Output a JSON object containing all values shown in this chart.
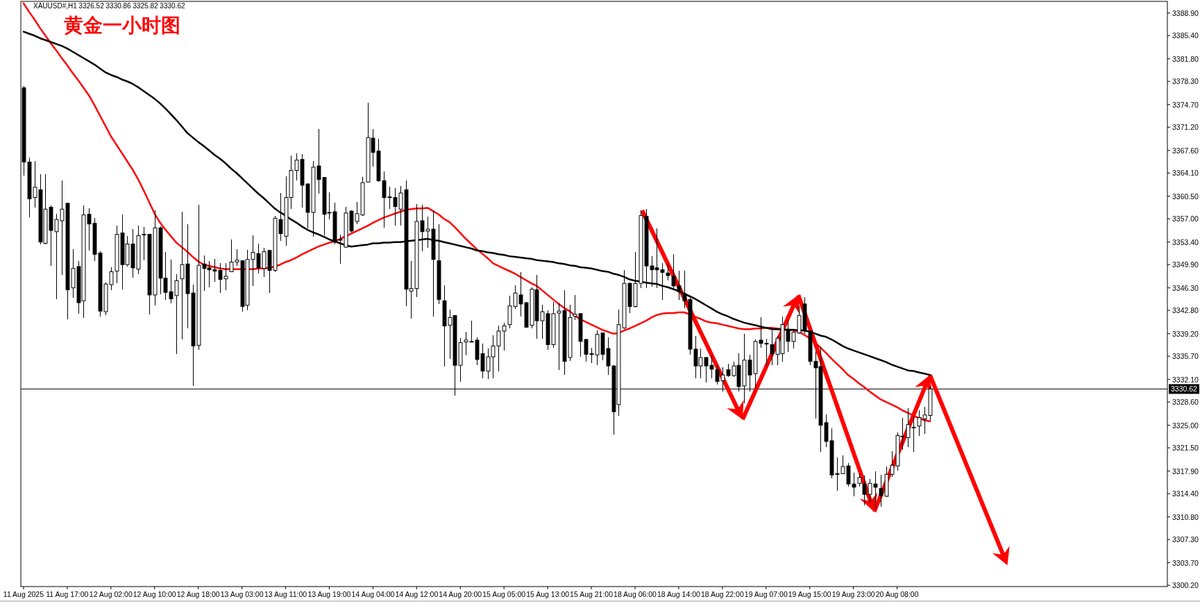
{
  "chart_data": {
    "type": "candlestick",
    "title": "黄金一小时图",
    "annotations": [
      "XAUUSD#,H1  3326.52 3330.86 3325.82 3330.62"
    ],
    "categories": [
      "11 Aug 2025",
      null,
      null,
      null,
      null,
      null,
      null,
      null,
      "11 Aug 17:00",
      null,
      null,
      null,
      null,
      null,
      null,
      null,
      "12 Aug 02:00",
      null,
      null,
      null,
      null,
      null,
      null,
      null,
      "12 Aug 10:00",
      null,
      null,
      null,
      null,
      null,
      null,
      null,
      "12 Aug 18:00",
      null,
      null,
      null,
      null,
      null,
      null,
      null,
      "13 Aug 03:00",
      null,
      null,
      null,
      null,
      null,
      null,
      null,
      "13 Aug 11:00",
      null,
      null,
      null,
      null,
      null,
      null,
      null,
      "13 Aug 19:00",
      null,
      null,
      null,
      null,
      null,
      null,
      null,
      "14 Aug 04:00",
      null,
      null,
      null,
      null,
      null,
      null,
      null,
      "14 Aug 12:00",
      null,
      null,
      null,
      null,
      null,
      null,
      null,
      "14 Aug 20:00",
      null,
      null,
      null,
      null,
      null,
      null,
      null,
      "15 Aug 05:00",
      null,
      null,
      null,
      null,
      null,
      null,
      null,
      "15 Aug 13:00",
      null,
      null,
      null,
      null,
      null,
      null,
      null,
      "15 Aug 21:00",
      null,
      null,
      null,
      null,
      null,
      null,
      null,
      "18 Aug 06:00",
      null,
      null,
      null,
      null,
      null,
      null,
      null,
      "18 Aug 14:00",
      null,
      null,
      null,
      null,
      null,
      null,
      null,
      "18 Aug 22:00",
      null,
      null,
      null,
      null,
      null,
      null,
      null,
      "19 Aug 07:00",
      null,
      null,
      null,
      null,
      null,
      null,
      null,
      "19 Aug 15:00",
      null,
      null,
      null,
      null,
      null,
      null,
      null,
      "19 Aug 23:00",
      null,
      null,
      null,
      null,
      null,
      null,
      null,
      "20 Aug 08:00",
      null,
      null,
      null,
      null,
      null,
      null
    ],
    "ohlc": [
      [
        3377.3,
        3377.5,
        3363.8,
        3365.8
      ],
      [
        3365.8,
        3366.4,
        3357.3,
        3360.1
      ],
      [
        3360.3,
        3365.8,
        3358.8,
        3361.9
      ],
      [
        3361.5,
        3363.8,
        3353.1,
        3353.4
      ],
      [
        3353.2,
        3363.8,
        3353.1,
        3358.5
      ],
      [
        3358.8,
        3359.0,
        3349.8,
        3355.2
      ],
      [
        3355.0,
        3357.7,
        3344.6,
        3356.9
      ],
      [
        3356.7,
        3362.8,
        3348.4,
        3358.5
      ],
      [
        3359.4,
        3359.4,
        3341.5,
        3346.0
      ],
      [
        3346.3,
        3352.2,
        3344.9,
        3349.3
      ],
      [
        3349.6,
        3350.3,
        3342.4,
        3344.0
      ],
      [
        3344.3,
        3359.0,
        3341.7,
        3357.6
      ],
      [
        3357.7,
        3358.5,
        3352.2,
        3356.2
      ],
      [
        3356.3,
        3357.0,
        3350.6,
        3351.5
      ],
      [
        3351.7,
        3351.9,
        3342.0,
        3342.7
      ],
      [
        3342.6,
        3347.0,
        3342.2,
        3346.9
      ],
      [
        3346.8,
        3349.4,
        3346.1,
        3348.8
      ],
      [
        3348.9,
        3355.8,
        3347.1,
        3354.6
      ],
      [
        3354.8,
        3357.6,
        3346.2,
        3349.9
      ],
      [
        3349.9,
        3354.2,
        3349.7,
        3353.1
      ],
      [
        3353.1,
        3355.3,
        3348.0,
        3349.4
      ],
      [
        3349.2,
        3355.8,
        3348.5,
        3354.4
      ],
      [
        3354.6,
        3355.6,
        3350.7,
        3354.5
      ],
      [
        3354.6,
        3354.6,
        3342.3,
        3345.2
      ],
      [
        3345.2,
        3358.2,
        3343.7,
        3355.6
      ],
      [
        3355.6,
        3355.7,
        3345.4,
        3347.8
      ],
      [
        3347.8,
        3351.8,
        3344.5,
        3345.6
      ],
      [
        3345.7,
        3350.6,
        3344.0,
        3344.6
      ],
      [
        3345.1,
        3348.3,
        3336.2,
        3347.4
      ],
      [
        3347.7,
        3358.0,
        3338.4,
        3349.9
      ],
      [
        3350.0,
        3356.1,
        3340.1,
        3345.4
      ],
      [
        3345.5,
        3346.7,
        3331.2,
        3337.3
      ],
      [
        3337.4,
        3359.1,
        3336.8,
        3349.8
      ],
      [
        3350.0,
        3351.2,
        3345.9,
        3349.3
      ],
      [
        3349.4,
        3350.4,
        3346.5,
        3349.1
      ],
      [
        3349.1,
        3350.7,
        3347.3,
        3348.9
      ],
      [
        3349.0,
        3350.0,
        3345.6,
        3347.6
      ],
      [
        3347.7,
        3350.0,
        3346.1,
        3348.1
      ],
      [
        3348.8,
        3353.7,
        3348.8,
        3350.3
      ],
      [
        3350.3,
        3352.2,
        3349.8,
        3350.6
      ],
      [
        3350.5,
        3350.5,
        3342.7,
        3343.4
      ],
      [
        3343.6,
        3352.1,
        3342.9,
        3350.7
      ],
      [
        3350.7,
        3354.3,
        3346.7,
        3351.8
      ],
      [
        3351.6,
        3353.0,
        3348.6,
        3349.4
      ],
      [
        3349.3,
        3352.4,
        3348.1,
        3351.9
      ],
      [
        3352.1,
        3352.1,
        3345.6,
        3349.0
      ],
      [
        3349.0,
        3357.4,
        3348.8,
        3357.1
      ],
      [
        3356.9,
        3360.9,
        3353.7,
        3354.7
      ],
      [
        3354.3,
        3363.5,
        3352.9,
        3360.3
      ],
      [
        3360.3,
        3366.7,
        3358.6,
        3364.5
      ],
      [
        3364.5,
        3367.0,
        3363.0,
        3366.1
      ],
      [
        3366.2,
        3366.9,
        3358.8,
        3362.2
      ],
      [
        3362.4,
        3362.4,
        3355.6,
        3358.0
      ],
      [
        3358.0,
        3365.9,
        3354.3,
        3365.0
      ],
      [
        3365.2,
        3370.8,
        3361.0,
        3363.1
      ],
      [
        3363.4,
        3363.4,
        3354.5,
        3357.7
      ],
      [
        3358.0,
        3361.0,
        3357.0,
        3358.0
      ],
      [
        3358.1,
        3359.4,
        3353.2,
        3353.4
      ],
      [
        3353.8,
        3354.4,
        3350.1,
        3353.8
      ],
      [
        3352.6,
        3358.7,
        3352.6,
        3357.9
      ],
      [
        3358.2,
        3358.2,
        3355.0,
        3355.1
      ],
      [
        3356.6,
        3359.5,
        3356.3,
        3357.8
      ],
      [
        3357.6,
        3363.4,
        3357.6,
        3362.6
      ],
      [
        3362.7,
        3374.9,
        3362.7,
        3369.6
      ],
      [
        3369.5,
        3370.8,
        3365.2,
        3367.3
      ],
      [
        3367.5,
        3369.3,
        3362.8,
        3362.9
      ],
      [
        3362.9,
        3364.2,
        3355.7,
        3360.3
      ],
      [
        3360.4,
        3361.9,
        3358.6,
        3360.4
      ],
      [
        3360.3,
        3361.7,
        3356.1,
        3358.9
      ],
      [
        3358.5,
        3362.0,
        3356.1,
        3361.0
      ],
      [
        3361.5,
        3362.8,
        3343.6,
        3346.1
      ],
      [
        3345.8,
        3350.4,
        3341.6,
        3346.2
      ],
      [
        3346.2,
        3359.2,
        3345.0,
        3356.6
      ],
      [
        3356.7,
        3359.1,
        3352.1,
        3355.0
      ],
      [
        3355.1,
        3357.2,
        3352.6,
        3355.4
      ],
      [
        3355.4,
        3358.2,
        3342.0,
        3350.7
      ],
      [
        3350.5,
        3356.1,
        3343.9,
        3344.5
      ],
      [
        3344.3,
        3346.6,
        3334.2,
        3340.4
      ],
      [
        3340.5,
        3342.8,
        3335.4,
        3341.7
      ],
      [
        3342.0,
        3342.0,
        3329.7,
        3334.3
      ],
      [
        3334.3,
        3338.4,
        3331.9,
        3337.8
      ],
      [
        3337.9,
        3339.4,
        3335.9,
        3338.2
      ],
      [
        3338.0,
        3341.1,
        3338.0,
        3338.0
      ],
      [
        3338.2,
        3338.5,
        3334.4,
        3335.2
      ],
      [
        3336.1,
        3337.5,
        3332.4,
        3333.4
      ],
      [
        3333.4,
        3336.8,
        3332.3,
        3335.6
      ],
      [
        3335.6,
        3338.8,
        3332.4,
        3337.3
      ],
      [
        3337.3,
        3340.3,
        3333.5,
        3339.6
      ],
      [
        3339.6,
        3340.8,
        3336.7,
        3340.4
      ],
      [
        3340.6,
        3345.0,
        3340.1,
        3343.5
      ],
      [
        3343.4,
        3346.6,
        3343.1,
        3345.5
      ],
      [
        3345.2,
        3348.6,
        3342.0,
        3343.8
      ],
      [
        3344.0,
        3344.0,
        3340.2,
        3340.2
      ],
      [
        3340.5,
        3346.3,
        3340.1,
        3346.1
      ],
      [
        3346.0,
        3348.2,
        3338.5,
        3341.2
      ],
      [
        3341.2,
        3343.6,
        3338.5,
        3342.6
      ],
      [
        3342.3,
        3342.7,
        3336.8,
        3337.5
      ],
      [
        3337.5,
        3344.0,
        3337.1,
        3342.3
      ],
      [
        3342.4,
        3343.9,
        3333.7,
        3342.7
      ],
      [
        3342.8,
        3345.8,
        3332.9,
        3334.9
      ],
      [
        3335.5,
        3343.6,
        3335.1,
        3341.7
      ],
      [
        3341.9,
        3345.1,
        3341.4,
        3342.2
      ],
      [
        3342.3,
        3342.3,
        3335.7,
        3338.0
      ],
      [
        3338.3,
        3338.3,
        3335.0,
        3336.0
      ],
      [
        3336.1,
        3336.9,
        3334.7,
        3336.1
      ],
      [
        3335.9,
        3339.6,
        3334.4,
        3339.1
      ],
      [
        3339.3,
        3339.3,
        3335.2,
        3336.0
      ],
      [
        3336.9,
        3338.5,
        3332.9,
        3334.2
      ],
      [
        3334.2,
        3334.2,
        3323.7,
        3327.1
      ],
      [
        3328.2,
        3342.8,
        3326.6,
        3340.6
      ],
      [
        3340.1,
        3349.0,
        3340.0,
        3347.0
      ],
      [
        3347.0,
        3347.0,
        3342.5,
        3343.4
      ],
      [
        3343.4,
        3351.7,
        3343.4,
        3347.0
      ],
      [
        3347.0,
        3358.2,
        3346.4,
        3357.5
      ],
      [
        3357.4,
        3358.4,
        3346.4,
        3349.7
      ],
      [
        3349.7,
        3351.1,
        3346.6,
        3349.1
      ],
      [
        3349.4,
        3355.4,
        3346.4,
        3349.1
      ],
      [
        3349.1,
        3350.0,
        3344.5,
        3348.7
      ],
      [
        3348.6,
        3349.9,
        3347.6,
        3348.2
      ],
      [
        3348.1,
        3351.4,
        3346.4,
        3346.6
      ],
      [
        3346.6,
        3348.8,
        3344.5,
        3345.7
      ],
      [
        3345.4,
        3348.9,
        3343.2,
        3344.3
      ],
      [
        3344.5,
        3344.7,
        3336.0,
        3336.8
      ],
      [
        3336.8,
        3338.7,
        3332.4,
        3334.2
      ],
      [
        3334.2,
        3336.8,
        3332.4,
        3335.5
      ],
      [
        3335.5,
        3335.5,
        3331.7,
        3334.2
      ],
      [
        3334.3,
        3335.7,
        3332.4,
        3333.7
      ],
      [
        3333.6,
        3334.2,
        3331.4,
        3331.8
      ],
      [
        3331.9,
        3333.9,
        3330.3,
        3332.8
      ],
      [
        3333.6,
        3334.4,
        3332.6,
        3332.7
      ],
      [
        3332.7,
        3334.7,
        3332.6,
        3334.2
      ],
      [
        3334.3,
        3336.0,
        3330.3,
        3331.0
      ],
      [
        3331.1,
        3339.1,
        3328.5,
        3335.1
      ],
      [
        3335.1,
        3335.8,
        3330.3,
        3332.8
      ],
      [
        3333.0,
        3338.2,
        3330.8,
        3338.0
      ],
      [
        3338.2,
        3341.6,
        3337.1,
        3337.7
      ],
      [
        3337.7,
        3338.3,
        3334.2,
        3337.7
      ],
      [
        3337.5,
        3339.6,
        3334.4,
        3336.1
      ],
      [
        3336.0,
        3338.7,
        3334.4,
        3338.5
      ],
      [
        3336.1,
        3341.7,
        3335.0,
        3340.6
      ],
      [
        3339.8,
        3341.1,
        3336.5,
        3338.0
      ],
      [
        3338.0,
        3339.8,
        3337.0,
        3339.4
      ],
      [
        3339.3,
        3343.4,
        3339.3,
        3342.0
      ],
      [
        3343.8,
        3344.8,
        3339.3,
        3339.6
      ],
      [
        3339.6,
        3339.6,
        3334.4,
        3334.9
      ],
      [
        3334.9,
        3336.4,
        3326.1,
        3333.9
      ],
      [
        3334.1,
        3337.1,
        3321.0,
        3325.0
      ],
      [
        3325.4,
        3326.6,
        3321.7,
        3322.5
      ],
      [
        3322.6,
        3324.4,
        3316.9,
        3317.3
      ],
      [
        3317.5,
        3319.9,
        3315.0,
        3317.5
      ],
      [
        3317.5,
        3320.2,
        3317.5,
        3318.6
      ],
      [
        3318.7,
        3319.0,
        3315.6,
        3315.9
      ],
      [
        3315.9,
        3317.5,
        3314.1,
        3315.4
      ],
      [
        3316.0,
        3317.4,
        3315.6,
        3316.9
      ],
      [
        3315.9,
        3317.1,
        3312.7,
        3314.3
      ],
      [
        3314.3,
        3316.6,
        3313.1,
        3316.0
      ],
      [
        3315.9,
        3317.8,
        3312.2,
        3315.4
      ],
      [
        3315.2,
        3317.2,
        3312.5,
        3314.1
      ],
      [
        3314.0,
        3318.5,
        3314.0,
        3317.4
      ],
      [
        3317.4,
        3320.9,
        3317.1,
        3318.8
      ],
      [
        3318.7,
        3323.8,
        3318.1,
        3323.4
      ],
      [
        3323.3,
        3326.0,
        3321.3,
        3323.3
      ],
      [
        3323.1,
        3327.5,
        3321.7,
        3325.1
      ],
      [
        3324.7,
        3326.3,
        3321.0,
        3324.7
      ],
      [
        3324.9,
        3327.2,
        3323.5,
        3326.2
      ],
      [
        3326.0,
        3327.8,
        3323.8,
        3326.6
      ],
      [
        3326.52,
        3330.86,
        3325.82,
        3330.62
      ]
    ],
    "series": [
      {
        "type": "line",
        "color": "#ff0000",
        "values": [
          3390.4,
          3389.1,
          3387.9,
          3386.6,
          3385.4,
          3384.2,
          3383.1,
          3381.9,
          3380.8,
          3379.6,
          3378.5,
          3377.3,
          3376.1,
          3374.6,
          3373.0,
          3371.4,
          3369.8,
          3368.5,
          3367.2,
          3365.9,
          3364.6,
          3363.1,
          3361.4,
          3359.6,
          3357.8,
          3356.4,
          3355.3,
          3354.3,
          3353.3,
          3352.6,
          3351.9,
          3351.1,
          3350.4,
          3349.9,
          3349.7,
          3349.5,
          3349.3,
          3349.2,
          3349.2,
          3349.2,
          3349.2,
          3349.2,
          3349.2,
          3349.3,
          3349.3,
          3349.4,
          3349.6,
          3349.9,
          3350.3,
          3350.6,
          3351.0,
          3351.5,
          3351.9,
          3352.3,
          3352.7,
          3353.0,
          3353.3,
          3353.5,
          3353.9,
          3354.3,
          3354.7,
          3355.1,
          3355.5,
          3355.9,
          3356.4,
          3356.8,
          3357.2,
          3357.5,
          3357.8,
          3358.1,
          3358.4,
          3358.5,
          3358.6,
          3358.6,
          3358.7,
          3358.2,
          3357.7,
          3357.0,
          3356.5,
          3355.7,
          3354.8,
          3353.9,
          3353.1,
          3352.3,
          3351.6,
          3350.9,
          3350.1,
          3349.7,
          3349.3,
          3348.9,
          3348.5,
          3348.0,
          3347.5,
          3347.0,
          3346.6,
          3345.9,
          3345.2,
          3344.5,
          3343.8,
          3343.2,
          3342.7,
          3342.0,
          3341.4,
          3341.0,
          3340.6,
          3340.2,
          3339.8,
          3339.5,
          3339.2,
          3339.3,
          3339.7,
          3340.0,
          3340.4,
          3340.8,
          3341.2,
          3341.7,
          3342.1,
          3342.3,
          3342.4,
          3342.4,
          3342.5,
          3342.5,
          3342.2,
          3341.8,
          3341.5,
          3341.1,
          3340.9,
          3340.8,
          3340.6,
          3340.4,
          3340.2,
          3340.0,
          3339.9,
          3339.9,
          3340.0,
          3340.0,
          3340.1,
          3340.1,
          3340.0,
          3339.9,
          3339.8,
          3339.7,
          3339.5,
          3339.0,
          3338.5,
          3337.8,
          3337.0,
          3336.2,
          3335.3,
          3334.5,
          3333.7,
          3332.8,
          3332.2,
          3331.5,
          3330.9,
          3330.2,
          3329.6,
          3329.0,
          3328.6,
          3328.2,
          3327.8,
          3327.3,
          3326.9,
          3326.5,
          3326.1,
          3325.8,
          3325.6
        ]
      },
      {
        "type": "line",
        "color": "#000000",
        "values": [
          3386.0,
          3385.7,
          3385.4,
          3385.0,
          3384.7,
          3384.4,
          3384.1,
          3383.8,
          3383.4,
          3382.9,
          3382.4,
          3381.9,
          3381.4,
          3380.9,
          3380.3,
          3379.7,
          3379.3,
          3379.0,
          3378.6,
          3378.3,
          3377.9,
          3377.4,
          3376.8,
          3376.2,
          3375.6,
          3374.9,
          3374.1,
          3373.2,
          3372.3,
          3371.3,
          3370.3,
          3369.6,
          3368.9,
          3368.3,
          3367.6,
          3366.9,
          3366.3,
          3365.6,
          3364.8,
          3364.1,
          3363.3,
          3362.5,
          3361.7,
          3360.9,
          3360.2,
          3359.4,
          3358.6,
          3358.0,
          3357.5,
          3356.9,
          3356.4,
          3355.8,
          3355.3,
          3354.9,
          3354.6,
          3354.2,
          3353.8,
          3353.5,
          3353.2,
          3352.9,
          3352.7,
          3352.8,
          3352.9,
          3353.0,
          3353.2,
          3353.2,
          3353.3,
          3353.3,
          3353.4,
          3353.4,
          3353.5,
          3353.6,
          3353.7,
          3353.8,
          3353.9,
          3353.7,
          3353.6,
          3353.4,
          3353.2,
          3353.0,
          3352.8,
          3352.6,
          3352.4,
          3352.1,
          3352.0,
          3351.8,
          3351.7,
          3351.5,
          3351.4,
          3351.2,
          3351.1,
          3351.0,
          3350.9,
          3350.8,
          3350.6,
          3350.5,
          3350.4,
          3350.3,
          3350.1,
          3350.0,
          3349.8,
          3349.7,
          3349.5,
          3349.4,
          3349.3,
          3349.1,
          3348.9,
          3348.8,
          3348.5,
          3348.3,
          3348.0,
          3347.6,
          3347.4,
          3347.3,
          3347.1,
          3347.0,
          3346.9,
          3346.6,
          3346.4,
          3346.1,
          3345.8,
          3345.4,
          3345.0,
          3344.6,
          3344.1,
          3343.6,
          3343.1,
          3342.6,
          3342.2,
          3341.9,
          3341.5,
          3341.2,
          3340.9,
          3340.7,
          3340.5,
          3340.3,
          3340.1,
          3339.9,
          3339.9,
          3339.8,
          3339.8,
          3339.8,
          3339.7,
          3339.7,
          3339.5,
          3339.2,
          3338.9,
          3338.7,
          3338.3,
          3337.8,
          3337.3,
          3336.9,
          3336.6,
          3336.3,
          3336.0,
          3335.7,
          3335.4,
          3335.1,
          3334.8,
          3334.4,
          3334.1,
          3333.8,
          3333.5,
          3333.4,
          3333.2,
          3333.0,
          3332.8
        ]
      }
    ],
    "ylim": [
      3300.0,
      3390.7
    ],
    "yticks": [
      {
        "value": 3388.9,
        "label": "3388.90"
      },
      {
        "value": 3385.4,
        "label": "3385.40"
      },
      {
        "value": 3381.8,
        "label": "3381.80"
      },
      {
        "value": 3378.3,
        "label": "3378.30"
      },
      {
        "value": 3374.7,
        "label": "3374.70"
      },
      {
        "value": 3371.2,
        "label": "3371.20"
      },
      {
        "value": 3367.6,
        "label": "3367.60"
      },
      {
        "value": 3364.1,
        "label": "3364.10"
      },
      {
        "value": 3360.5,
        "label": "3360.50"
      },
      {
        "value": 3357,
        "label": "3357.00"
      },
      {
        "value": 3353.4,
        "label": "3353.40"
      },
      {
        "value": 3349.9,
        "label": "3349.90"
      },
      {
        "value": 3346.3,
        "label": "3346.30"
      },
      {
        "value": 3342.8,
        "label": "3342.80"
      },
      {
        "value": 3339.2,
        "label": "3339.20"
      },
      {
        "value": 3335.7,
        "label": "3335.70"
      },
      {
        "value": 3332.1,
        "label": "3332.10"
      },
      {
        "value": 3328.6,
        "label": "3328.60"
      },
      {
        "value": 3325,
        "label": "3325.00"
      },
      {
        "value": 3321.5,
        "label": "3321.50"
      },
      {
        "value": 3317.9,
        "label": "3317.90"
      },
      {
        "value": 3314.4,
        "label": "3314.40"
      },
      {
        "value": 3310.8,
        "label": "3310.80"
      },
      {
        "value": 3307.3,
        "label": "3307.30"
      },
      {
        "value": 3303.7,
        "label": "3303.70"
      },
      {
        "value": 3300.2,
        "label": "3300.20"
      }
    ],
    "ref_lines": [
      {
        "axis": "y",
        "value": 3330.62,
        "label": "3330.62"
      }
    ]
  }
}
